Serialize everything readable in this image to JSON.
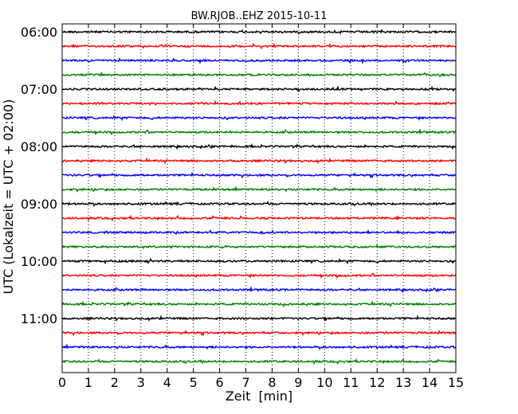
{
  "chart_data": {
    "type": "line",
    "title": "BW.RJOB..EHZ 2015-10-11",
    "xlabel": "Zeit  [min]",
    "ylabel": "UTC (Lokalzeit = UTC + 02:00)",
    "xlim": [
      0,
      15
    ],
    "x_ticks": [
      "0",
      "1",
      "2",
      "3",
      "4",
      "5",
      "6",
      "7",
      "8",
      "9",
      "10",
      "11",
      "12",
      "13",
      "14",
      "15"
    ],
    "y_tick_labels": [
      "06:00",
      "07:00",
      "08:00",
      "09:00",
      "10:00",
      "11:00"
    ],
    "trace_interval_min": 15,
    "trace_colors": [
      "#000000",
      "#ff0000",
      "#0000ff",
      "#008000"
    ],
    "vertical_grid": true,
    "vertical_grid_style": "dotted",
    "series": [
      {
        "start_time": "06:00",
        "color": "#000000"
      },
      {
        "start_time": "06:15",
        "color": "#ff0000"
      },
      {
        "start_time": "06:30",
        "color": "#0000ff"
      },
      {
        "start_time": "06:45",
        "color": "#008000"
      },
      {
        "start_time": "07:00",
        "color": "#000000"
      },
      {
        "start_time": "07:15",
        "color": "#ff0000"
      },
      {
        "start_time": "07:30",
        "color": "#0000ff"
      },
      {
        "start_time": "07:45",
        "color": "#008000"
      },
      {
        "start_time": "08:00",
        "color": "#000000"
      },
      {
        "start_time": "08:15",
        "color": "#ff0000"
      },
      {
        "start_time": "08:30",
        "color": "#0000ff"
      },
      {
        "start_time": "08:45",
        "color": "#008000"
      },
      {
        "start_time": "09:00",
        "color": "#000000"
      },
      {
        "start_time": "09:15",
        "color": "#ff0000"
      },
      {
        "start_time": "09:30",
        "color": "#0000ff"
      },
      {
        "start_time": "09:45",
        "color": "#008000"
      },
      {
        "start_time": "10:00",
        "color": "#000000"
      },
      {
        "start_time": "10:15",
        "color": "#ff0000"
      },
      {
        "start_time": "10:30",
        "color": "#0000ff"
      },
      {
        "start_time": "10:45",
        "color": "#008000"
      },
      {
        "start_time": "11:00",
        "color": "#000000"
      },
      {
        "start_time": "11:15",
        "color": "#ff0000"
      },
      {
        "start_time": "11:30",
        "color": "#0000ff"
      },
      {
        "start_time": "11:45",
        "color": "#008000"
      }
    ]
  }
}
